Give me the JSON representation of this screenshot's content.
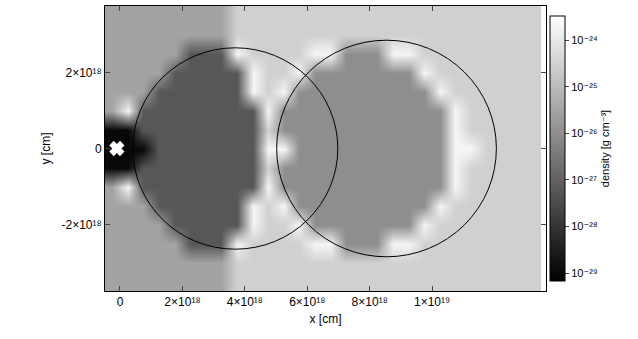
{
  "chart_data": {
    "type": "heatmap",
    "x_label": "x [cm]",
    "y_label": "y [cm]",
    "colorbar_title": "density [g cm⁻³]",
    "xlim": [
      -4.8e+17,
      1.365e+19
    ],
    "ylim": [
      -3.75e+18,
      3.75e+18
    ],
    "xticks": [
      0,
      {
        "value": 2e+18,
        "label": "2×10¹⁸"
      },
      {
        "value": 4e+18,
        "label": "4×10¹⁸"
      },
      {
        "value": 6e+18,
        "label": "6×10¹⁸"
      },
      {
        "value": 8e+18,
        "label": "8×10¹⁸"
      },
      {
        "value": 1e+19,
        "label": "1×10¹⁹"
      }
    ],
    "yticks": [
      {
        "value": -2e+18,
        "label": "-2×10¹⁸"
      },
      0,
      {
        "value": 2e+18,
        "label": "2×10¹⁸"
      }
    ],
    "zlim": [
      6.8e-30,
      3.3e-24
    ],
    "zticks": [
      {
        "value": 1e-29,
        "label": "10⁻²⁹"
      },
      {
        "value": 1e-28,
        "label": "10⁻²⁸"
      },
      {
        "value": 1e-27,
        "label": "10⁻²⁷"
      },
      {
        "value": 1e-26,
        "label": "10⁻²⁶"
      },
      {
        "value": 1e-25,
        "label": "10⁻²⁵"
      },
      {
        "value": 1e-24,
        "label": "10⁻²⁴"
      }
    ],
    "x": [
      -2.5e+17,
      2.5e+17,
      7.5e+17,
      1.25e+18,
      1.75e+18,
      2.25e+18,
      2.75e+18,
      3.25e+18,
      3.75e+18,
      4.25e+18,
      4.75e+18,
      5.25e+18,
      5.75e+18,
      6.25e+18,
      6.75e+18,
      7.25e+18,
      7.75e+18,
      8.25e+18,
      8.75e+18,
      9.25e+18,
      9.75e+18,
      1.025e+19,
      1.075e+19,
      1.125e+19,
      1.175e+19,
      1.225e+19,
      1.275e+19,
      1.325e+19
    ],
    "y": [
      -3.5e+18,
      -3e+18,
      -2.5e+18,
      -2e+18,
      -1.5e+18,
      -1e+18,
      -5e+17,
      0,
      5e+17,
      1e+18,
      1.5e+18,
      2e+18,
      2.5e+18,
      3e+18,
      3.5e+18
    ],
    "cells": [
      [
        3e-26,
        3e-26,
        3e-26,
        3e-26,
        3e-26,
        3e-26,
        3e-26,
        3e-26,
        3e-25,
        3e-25,
        3e-25,
        3e-25,
        3e-25,
        3e-25,
        3e-25,
        3e-25,
        3e-25,
        3e-25,
        3e-25,
        3e-25,
        3e-25,
        3e-25,
        3e-25,
        3e-25,
        3e-25,
        3e-25,
        3e-25,
        3e-25
      ],
      [
        3e-26,
        3e-26,
        3e-26,
        3e-26,
        3e-26,
        3e-26,
        3e-26,
        3e-26,
        3e-25,
        3e-25,
        3e-25,
        3e-25,
        3e-25,
        3e-25,
        3e-25,
        3e-25,
        3e-25,
        3e-25,
        3e-25,
        3e-25,
        3e-25,
        3e-25,
        3e-25,
        3e-25,
        3e-25,
        3e-25,
        3e-25,
        3e-25
      ],
      [
        3e-26,
        3e-26,
        3e-26,
        3e-26,
        3e-26,
        6e-28,
        6e-28,
        6e-28,
        2e-24,
        3e-25,
        3e-25,
        3e-25,
        3e-25,
        2e-24,
        2e-24,
        1e-26,
        1e-26,
        1e-26,
        2e-24,
        2e-24,
        3e-25,
        3e-25,
        3e-25,
        3e-25,
        3e-25,
        3e-25,
        3e-25,
        3e-25
      ],
      [
        3e-26,
        3e-26,
        3e-26,
        3e-26,
        6e-28,
        6e-28,
        6e-28,
        6e-28,
        6e-28,
        2e-24,
        3e-25,
        3e-25,
        2e-24,
        1e-26,
        1e-26,
        1e-26,
        1e-26,
        1e-26,
        1e-26,
        1e-26,
        2e-24,
        3e-25,
        3e-25,
        3e-25,
        3e-25,
        3e-25,
        3e-25,
        3e-25
      ],
      [
        3e-26,
        3e-26,
        3e-26,
        6e-28,
        6e-28,
        6e-28,
        6e-28,
        6e-28,
        6e-28,
        2e-24,
        3e-25,
        2e-24,
        1e-26,
        1e-26,
        1e-26,
        1e-26,
        1e-26,
        1e-26,
        1e-26,
        1e-26,
        1e-26,
        2e-24,
        3e-25,
        3e-25,
        3e-25,
        3e-25,
        3e-25,
        3e-25
      ],
      [
        3e-26,
        2e-24,
        6e-28,
        6e-28,
        6e-28,
        6e-28,
        6e-28,
        6e-28,
        6e-28,
        6e-28,
        2e-24,
        1e-26,
        1e-26,
        1e-26,
        1e-26,
        1e-26,
        1e-26,
        1e-26,
        1e-26,
        1e-26,
        1e-26,
        1e-26,
        2e-24,
        3e-25,
        3e-25,
        3e-25,
        3e-25,
        3e-25
      ],
      [
        1e-29,
        1e-29,
        6e-28,
        6e-28,
        6e-28,
        6e-28,
        6e-28,
        6e-28,
        6e-28,
        6e-28,
        3e-25,
        1e-26,
        1e-26,
        1e-26,
        1e-26,
        1e-26,
        1e-26,
        1e-26,
        1e-26,
        1e-26,
        1e-26,
        1e-26,
        2e-24,
        3e-25,
        3e-25,
        3e-25,
        3e-25,
        3e-25
      ],
      [
        1e-29,
        1e-29,
        1e-29,
        6e-28,
        6e-28,
        6e-28,
        6e-28,
        6e-28,
        6e-28,
        6e-28,
        2e-24,
        2e-24,
        1e-26,
        1e-26,
        1e-26,
        1e-26,
        1e-26,
        1e-26,
        1e-26,
        1e-26,
        1e-26,
        1e-26,
        2e-24,
        2e-24,
        3e-25,
        3e-25,
        3e-25,
        3e-25
      ],
      [
        1e-29,
        1e-29,
        6e-28,
        6e-28,
        6e-28,
        6e-28,
        6e-28,
        6e-28,
        6e-28,
        6e-28,
        3e-25,
        1e-26,
        1e-26,
        1e-26,
        1e-26,
        1e-26,
        1e-26,
        1e-26,
        1e-26,
        1e-26,
        1e-26,
        1e-26,
        2e-24,
        3e-25,
        3e-25,
        3e-25,
        3e-25,
        3e-25
      ],
      [
        3e-26,
        2e-24,
        6e-28,
        6e-28,
        6e-28,
        6e-28,
        6e-28,
        6e-28,
        6e-28,
        6e-28,
        2e-24,
        1e-26,
        1e-26,
        1e-26,
        1e-26,
        1e-26,
        1e-26,
        1e-26,
        1e-26,
        1e-26,
        1e-26,
        1e-26,
        2e-24,
        3e-25,
        3e-25,
        3e-25,
        3e-25,
        3e-25
      ],
      [
        3e-26,
        3e-26,
        3e-26,
        6e-28,
        6e-28,
        6e-28,
        6e-28,
        6e-28,
        6e-28,
        2e-24,
        3e-25,
        2e-24,
        1e-26,
        1e-26,
        1e-26,
        1e-26,
        1e-26,
        1e-26,
        1e-26,
        1e-26,
        1e-26,
        2e-24,
        3e-25,
        3e-25,
        3e-25,
        3e-25,
        3e-25,
        3e-25
      ],
      [
        3e-26,
        3e-26,
        3e-26,
        3e-26,
        6e-28,
        6e-28,
        6e-28,
        6e-28,
        6e-28,
        2e-24,
        3e-25,
        3e-25,
        2e-24,
        1e-26,
        1e-26,
        1e-26,
        1e-26,
        1e-26,
        1e-26,
        1e-26,
        2e-24,
        3e-25,
        3e-25,
        3e-25,
        3e-25,
        3e-25,
        3e-25,
        3e-25
      ],
      [
        3e-26,
        3e-26,
        3e-26,
        3e-26,
        3e-26,
        6e-28,
        6e-28,
        6e-28,
        2e-24,
        3e-25,
        3e-25,
        3e-25,
        3e-25,
        2e-24,
        2e-24,
        1e-26,
        1e-26,
        1e-26,
        2e-24,
        2e-24,
        3e-25,
        3e-25,
        3e-25,
        3e-25,
        3e-25,
        3e-25,
        3e-25,
        3e-25
      ],
      [
        3e-26,
        3e-26,
        3e-26,
        3e-26,
        3e-26,
        3e-26,
        3e-26,
        3e-26,
        3e-25,
        3e-25,
        3e-25,
        3e-25,
        3e-25,
        3e-25,
        3e-25,
        3e-25,
        3e-25,
        3e-25,
        3e-25,
        3e-25,
        3e-25,
        3e-25,
        3e-25,
        3e-25,
        3e-25,
        3e-25,
        3e-25,
        3e-25
      ],
      [
        3e-26,
        3e-26,
        3e-26,
        3e-26,
        3e-26,
        3e-26,
        3e-26,
        3e-26,
        3e-25,
        3e-25,
        3e-25,
        3e-25,
        3e-25,
        3e-25,
        3e-25,
        3e-25,
        3e-25,
        3e-25,
        3e-25,
        3e-25,
        3e-25,
        3e-25,
        3e-25,
        3e-25,
        3e-25,
        3e-25,
        3e-25,
        3e-25
      ]
    ],
    "circles": [
      {
        "x0": 4.1e+17,
        "x1": 6.98e+18,
        "y0": -2.65e+18,
        "y1": 2.65e+18
      },
      {
        "x0": 5.02e+18,
        "x1": 1.206e+19,
        "y0": -2.85e+18,
        "y1": 2.85e+18
      }
    ],
    "series": [
      {
        "type": "scatter",
        "marker": "x",
        "color": "white",
        "x": [
          -1e+17
        ],
        "y": [
          0
        ]
      }
    ]
  }
}
